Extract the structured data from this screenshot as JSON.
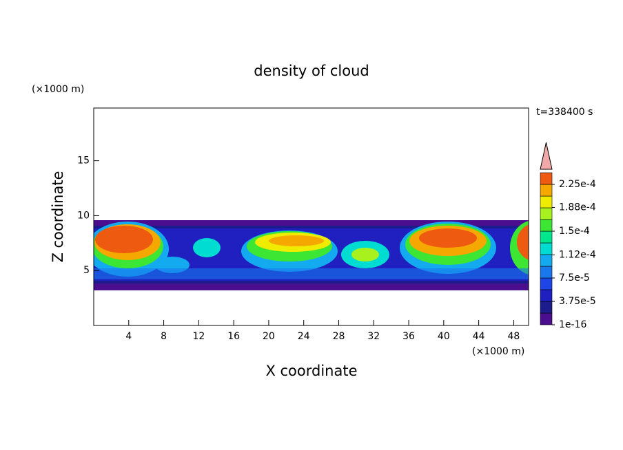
{
  "chart_data": {
    "type": "contour",
    "title": "density of cloud",
    "x_label": "X coordinate",
    "y_label": "Z coordinate",
    "x_unit": "(×1000 m)",
    "y_unit": "(×1000 m)",
    "annotation": "t=338400 s",
    "xlim": [
      0,
      49.7
    ],
    "ylim": [
      0,
      19.8
    ],
    "xticks": [
      4,
      8,
      12,
      16,
      20,
      24,
      28,
      32,
      36,
      40,
      44,
      48
    ],
    "yticks": [
      5,
      10,
      15
    ],
    "colorbar": {
      "clim": [
        0,
        0.00024375
      ],
      "colors": [
        "#4a0e8f",
        "#1c1c8c",
        "#2020c0",
        "#1e46e6",
        "#1878ec",
        "#14aaf0",
        "#00dcd2",
        "#00e68c",
        "#3ce632",
        "#a8f01e",
        "#f0ec00",
        "#f4a800",
        "#ee5a10"
      ],
      "over_color": "#f0a8a8",
      "ticks": [
        {
          "value": 1e-16,
          "label": "1e-16"
        },
        {
          "value": 3.75e-05,
          "label": "3.75e-5"
        },
        {
          "value": 7.5e-05,
          "label": "7.5e-5"
        },
        {
          "value": 0.000112,
          "label": "1.12e-4"
        },
        {
          "value": 0.00015,
          "label": "1.5e-4"
        },
        {
          "value": 0.000188,
          "label": "1.88e-4"
        },
        {
          "value": 0.000225,
          "label": "2.25e-4"
        }
      ]
    }
  }
}
